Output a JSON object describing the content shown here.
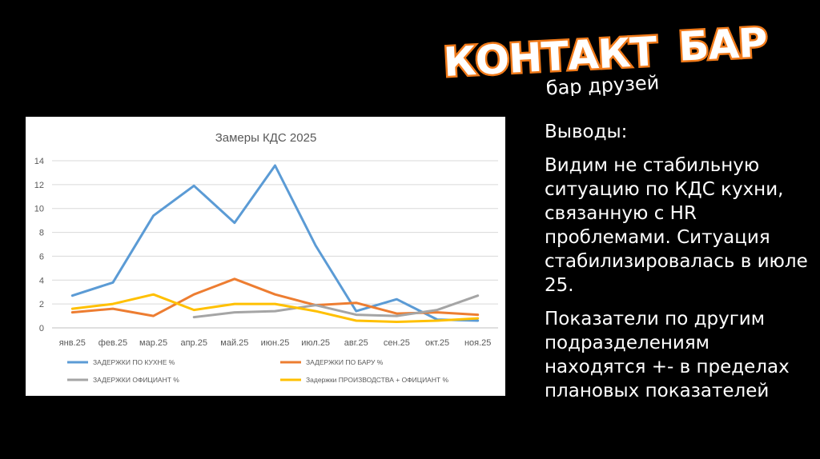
{
  "logo": {
    "word1": "КОНТАКТ",
    "word2": "БАР",
    "tagline": "бар друзей"
  },
  "conclusions": {
    "heading": "Выводы:",
    "paragraph1": "Видим не стабильную ситуацию по КДС кухни, связанную с HR проблемами. Ситуация стабилизировалась в июле 25.",
    "paragraph2": "Показатели по другим подразделениям находятся +- в пределах плановых показателей"
  },
  "colors": {
    "kitchen": "#5b9bd5",
    "bar": "#ed7d31",
    "waiter": "#a5a5a5",
    "production": "#ffc000"
  },
  "chart_data": {
    "type": "line",
    "title": "Замеры КДС 2025",
    "categories": [
      "янв.25",
      "фев.25",
      "мар.25",
      "апр.25",
      "май.25",
      "июн.25",
      "июл.25",
      "авг.25",
      "сен.25",
      "окт.25",
      "ноя.25"
    ],
    "ylim": [
      0,
      14
    ],
    "yticks": [
      0,
      2,
      4,
      6,
      8,
      10,
      12,
      14
    ],
    "grid": true,
    "legend_position": "bottom",
    "series": [
      {
        "name": "ЗАДЕРЖКИ  ПО КУХНЕ %",
        "values": [
          2.7,
          3.8,
          9.4,
          11.9,
          8.8,
          13.6,
          6.9,
          1.4,
          2.4,
          0.7,
          0.6
        ]
      },
      {
        "name": "ЗАДЕРЖКИ ПО БАРУ  %",
        "values": [
          1.3,
          1.6,
          1.0,
          2.8,
          4.1,
          2.8,
          1.9,
          2.1,
          1.2,
          1.3,
          1.1
        ]
      },
      {
        "name": "ЗАДЕРЖКИ  ОФИЦИАНТ %",
        "values": [
          null,
          null,
          null,
          0.9,
          1.3,
          1.4,
          1.9,
          1.1,
          1.0,
          1.5,
          2.7
        ]
      },
      {
        "name": "Задержки ПРОИЗВОДСТВА + ОФИЦИАНТ %",
        "values": [
          1.6,
          2.0,
          2.8,
          1.5,
          2.0,
          2.0,
          1.4,
          0.6,
          0.5,
          0.6,
          0.8
        ]
      }
    ]
  }
}
